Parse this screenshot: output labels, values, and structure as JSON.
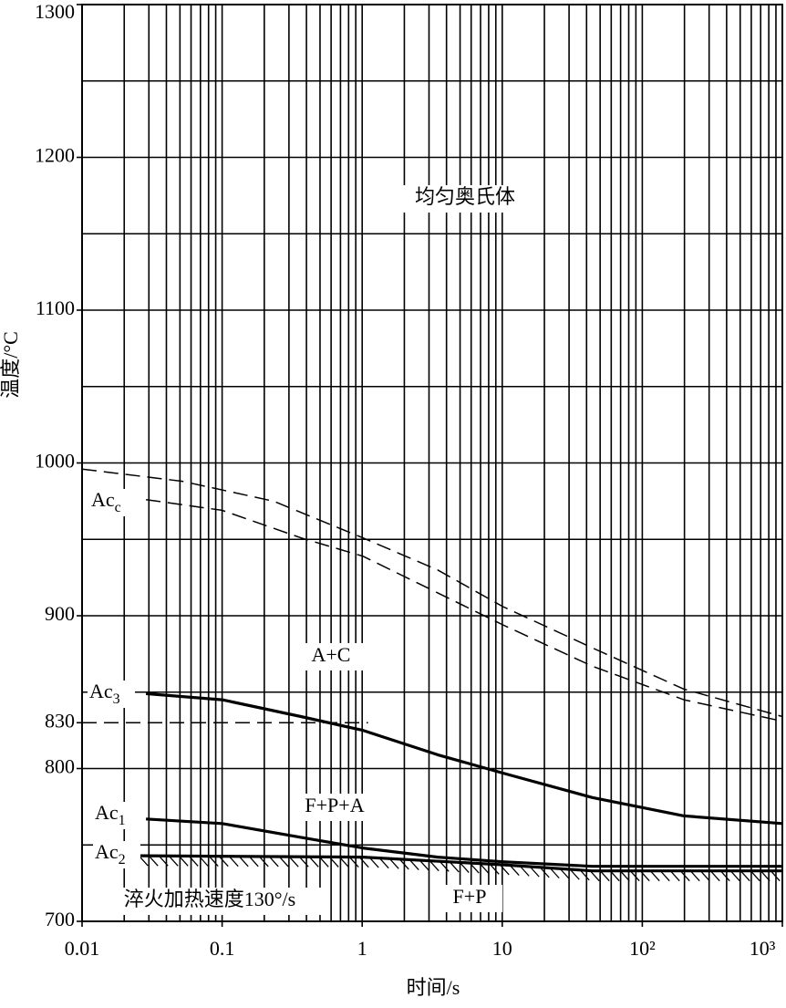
{
  "chart_data": {
    "type": "line",
    "x_label": "时间/s",
    "y_label": "温度/°C",
    "xscale": "log",
    "xlim": [
      0.01,
      1000
    ],
    "ylim": [
      700,
      1300
    ],
    "xticks": [
      0.01,
      0.1,
      1,
      10,
      {
        "value": 100,
        "label": "10²"
      },
      {
        "value": 1000,
        "label": "10³"
      }
    ],
    "yticks": [
      700,
      800,
      830,
      900,
      1000,
      1100,
      1200,
      1300
    ],
    "xgrid": [
      0.02,
      0.03,
      0.04,
      0.05,
      0.06,
      0.07,
      0.08,
      0.09,
      0.1,
      0.2,
      0.3,
      0.4,
      0.5,
      0.6,
      0.7,
      0.8,
      0.9,
      1,
      2,
      3,
      4,
      5,
      6,
      7,
      8,
      9,
      10,
      20,
      30,
      40,
      50,
      60,
      70,
      80,
      90,
      100,
      200,
      300,
      400,
      500,
      600,
      700,
      800,
      900
    ],
    "ygrid": [
      750,
      800,
      850,
      900,
      950,
      1000,
      1050,
      1100,
      1150,
      1200,
      1250
    ],
    "series": [
      {
        "name": "Ac",
        "sub": "c",
        "style": "dashed",
        "color": "#000000",
        "x": [
          0.01,
          0.052,
          0.233,
          1.01,
          3.46,
          10.1,
          44,
          198,
          1000
        ],
        "values": [
          996,
          988,
          975,
          951,
          930,
          906,
          879,
          852,
          834
        ]
      },
      {
        "style": "dashed",
        "color": "#000000",
        "x": [
          0.0286,
          0.1,
          0.365,
          1.01,
          3.46,
          10.1,
          44,
          198,
          1000
        ],
        "values": [
          976,
          969,
          951,
          939,
          915,
          894,
          867,
          845,
          831
        ]
      },
      {
        "style": "dashed",
        "color": "#000000",
        "x": [
          0.01,
          1.1
        ],
        "values": [
          830,
          830
        ]
      },
      {
        "name": "Ac",
        "sub": "3",
        "style": "solid",
        "color": "#000000",
        "x": [
          0.0286,
          0.1,
          0.365,
          1.01,
          3.46,
          10.1,
          44,
          198,
          1000
        ],
        "values": [
          849,
          845,
          834,
          825,
          809,
          797,
          781,
          769,
          764
        ]
      },
      {
        "name": "Ac",
        "sub": "1",
        "style": "solid",
        "color": "#000000",
        "x": [
          0.0286,
          0.1,
          0.365,
          1.01,
          3.46,
          10.1,
          44,
          1000
        ],
        "values": [
          767,
          764,
          755,
          748,
          742,
          739,
          736,
          736
        ]
      },
      {
        "name": "Ac",
        "sub": "2",
        "style": "solid",
        "color": "#000000",
        "hatch": true,
        "x": [
          0.0206,
          1.01,
          10.1,
          44,
          1000
        ],
        "values": [
          743,
          742,
          737,
          733,
          733
        ]
      }
    ],
    "annotations": [
      "均匀奥氏体",
      "A+C",
      "F+P+A",
      "F+P",
      "淬火加热速度130°/s"
    ]
  }
}
